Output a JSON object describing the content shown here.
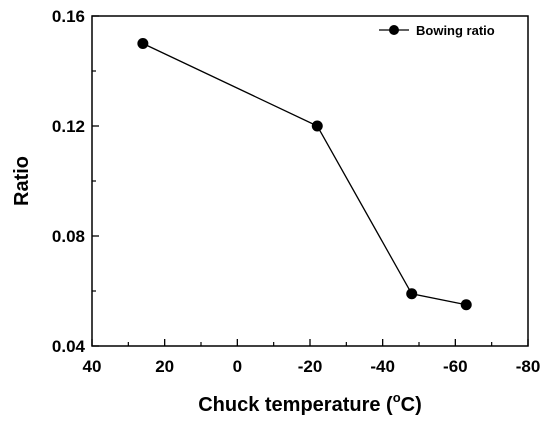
{
  "chart_data": {
    "type": "line",
    "title": "",
    "xlabel": "Chuck temperature (",
    "xlabel_degree": "o",
    "xlabel_unit": "C)",
    "ylabel": "Ratio",
    "xlim": [
      40,
      -80
    ],
    "x_reversed": true,
    "ylim": [
      0.04,
      0.16
    ],
    "x_ticks": [
      40,
      20,
      0,
      -20,
      -40,
      -60,
      -80
    ],
    "x_tick_labels": [
      "40",
      "20",
      "0",
      "-20",
      "-40",
      "-60",
      "-80"
    ],
    "y_ticks": [
      0.04,
      0.08,
      0.12,
      0.16
    ],
    "y_tick_labels": [
      "0.04",
      "0.08",
      "0.12",
      "0.16"
    ],
    "grid": false,
    "legend_position": "top-right",
    "series": [
      {
        "name": "Bowing ratio",
        "color": "#000000",
        "marker": "circle",
        "x": [
          26,
          -22,
          -48,
          -63
        ],
        "y": [
          0.15,
          0.12,
          0.059,
          0.055
        ]
      }
    ]
  }
}
